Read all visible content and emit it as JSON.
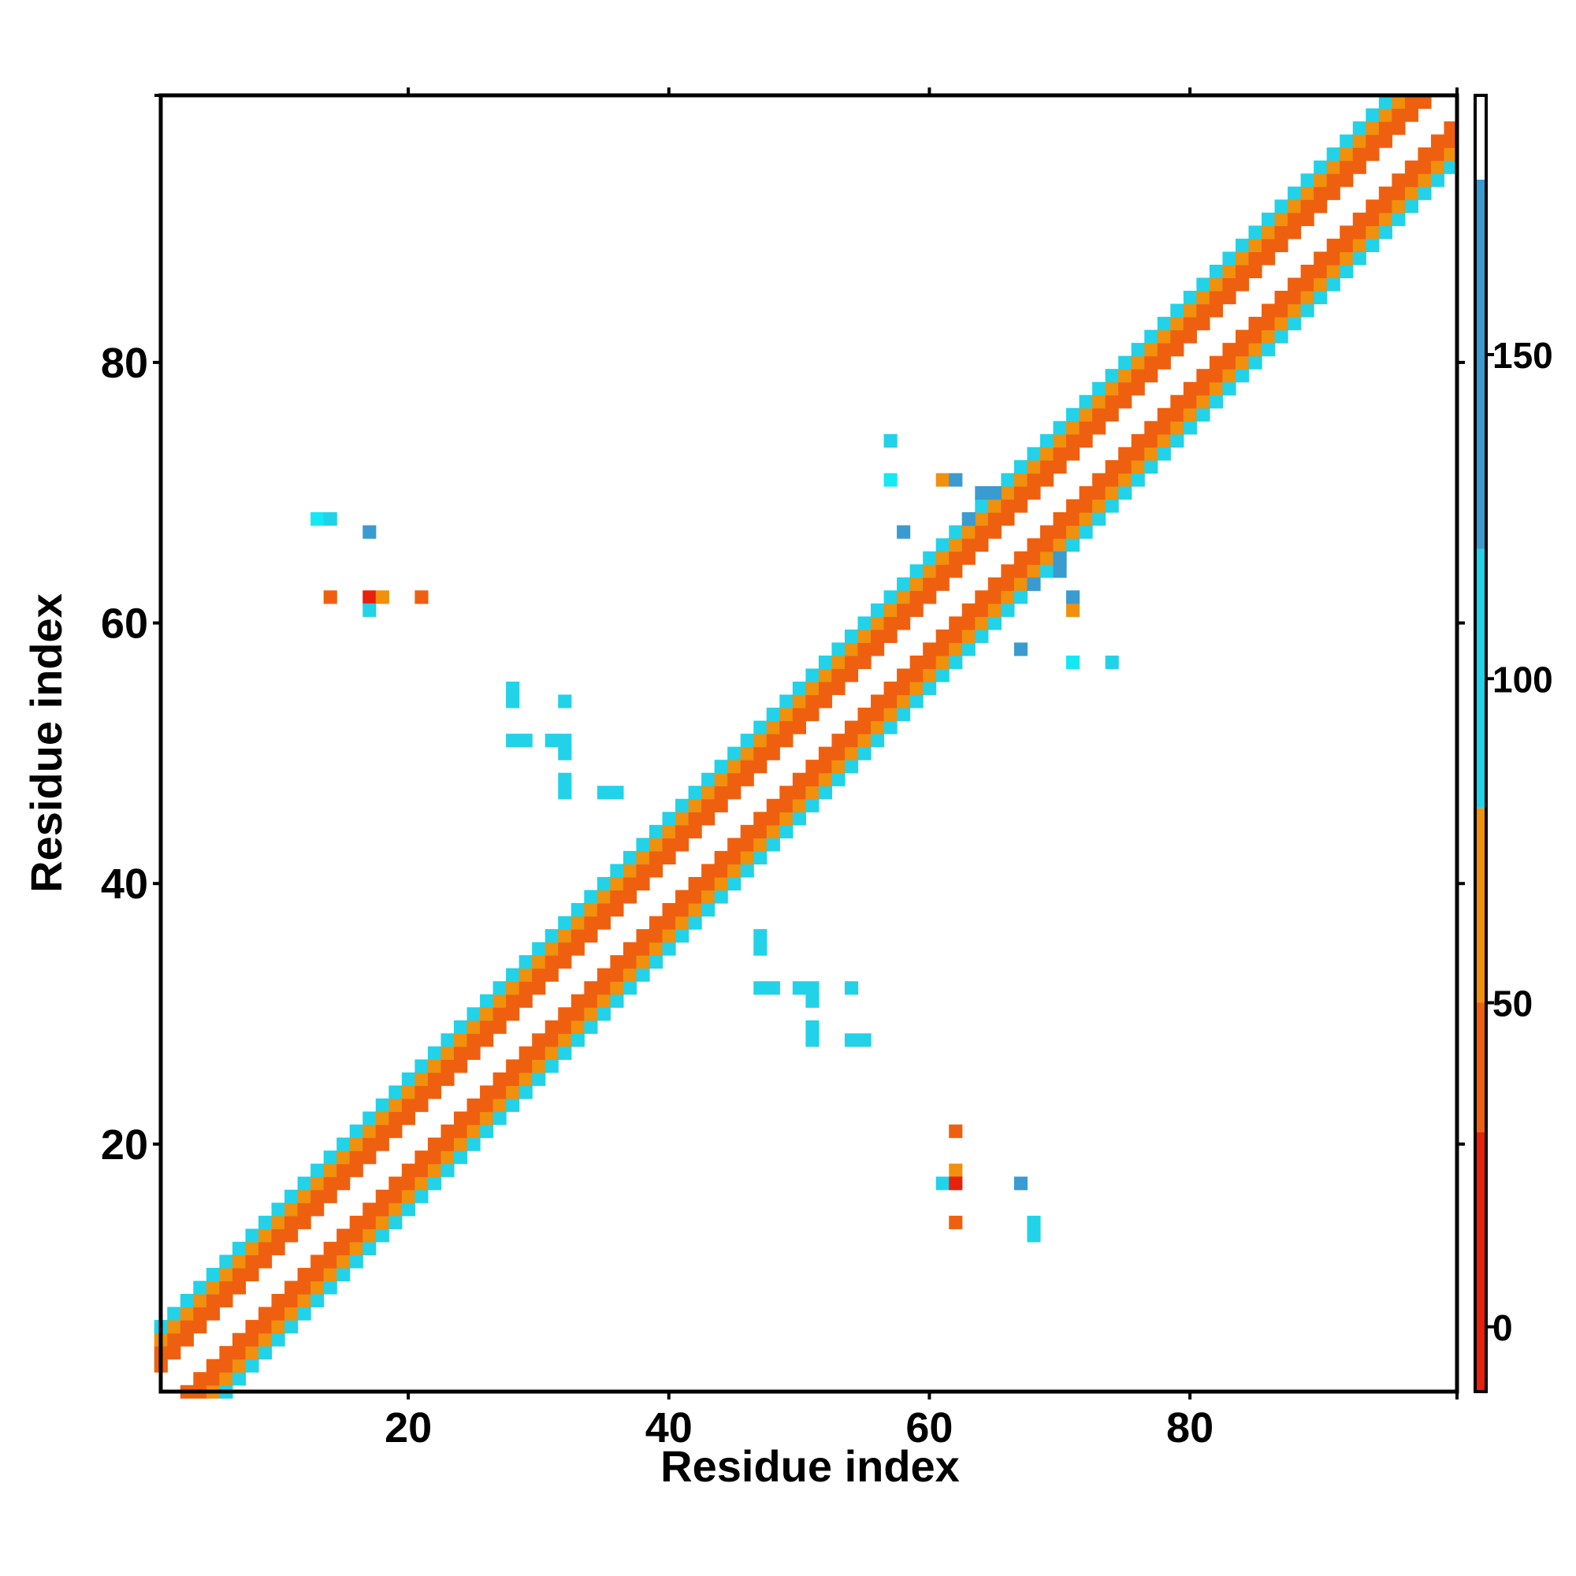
{
  "chart_data": {
    "type": "heatmap",
    "title": "",
    "xlabel": "Residue index",
    "ylabel": "Residue index",
    "xlim": [
      1,
      100
    ],
    "ylim": [
      1,
      100
    ],
    "x_ticks": [
      20,
      40,
      60,
      80
    ],
    "y_ticks": [
      20,
      40,
      60,
      80
    ],
    "grid": false,
    "colorbar": {
      "position": "right",
      "range": [
        -10,
        190
      ],
      "ticks": [
        0,
        50,
        100,
        150
      ],
      "bands": [
        {
          "from": -10,
          "to": 30,
          "color": "#e8200c"
        },
        {
          "from": 30,
          "to": 50,
          "color": "#ee6010"
        },
        {
          "from": 50,
          "to": 80,
          "color": "#f0900c"
        },
        {
          "from": 80,
          "to": 120,
          "color": "#22d2e8"
        },
        {
          "from": 120,
          "to": 177,
          "color": "#3a9bd0"
        },
        {
          "from": 177,
          "to": 190,
          "color": "#ffffff"
        }
      ]
    },
    "colors": {
      "red": "#e8200c",
      "orange_red": "#ee6010",
      "orange": "#f0900c",
      "cyan": "#22d2e8",
      "bright_cyan": "#14e8f4",
      "blue": "#3a9bd0"
    },
    "band_pattern": {
      "description": "Dense contacts along the main diagonal; value class depends on |i-j| offset",
      "offset_values": [
        [
          2,
          35
        ],
        [
          3,
          45
        ],
        [
          4,
          60
        ],
        [
          5,
          100
        ]
      ]
    },
    "off_diagonal_contacts": [
      {
        "x": 13,
        "y": 68,
        "value": 105
      },
      {
        "x": 14,
        "y": 68,
        "value": 100
      },
      {
        "x": 17,
        "y": 67,
        "value": 150
      },
      {
        "x": 14,
        "y": 62,
        "value": 45
      },
      {
        "x": 17,
        "y": 62,
        "value": 20
      },
      {
        "x": 18,
        "y": 62,
        "value": 60
      },
      {
        "x": 21,
        "y": 62,
        "value": 45
      },
      {
        "x": 17,
        "y": 61,
        "value": 100
      },
      {
        "x": 28,
        "y": 55,
        "value": 100
      },
      {
        "x": 28,
        "y": 54,
        "value": 100
      },
      {
        "x": 32,
        "y": 54,
        "value": 100
      },
      {
        "x": 28,
        "y": 51,
        "value": 100
      },
      {
        "x": 29,
        "y": 51,
        "value": 100
      },
      {
        "x": 31,
        "y": 51,
        "value": 100
      },
      {
        "x": 32,
        "y": 51,
        "value": 100
      },
      {
        "x": 32,
        "y": 50,
        "value": 100
      },
      {
        "x": 32,
        "y": 48,
        "value": 100
      },
      {
        "x": 32,
        "y": 47,
        "value": 100
      },
      {
        "x": 35,
        "y": 47,
        "value": 100
      },
      {
        "x": 36,
        "y": 47,
        "value": 100
      },
      {
        "x": 47,
        "y": 36,
        "value": 100
      },
      {
        "x": 47,
        "y": 35,
        "value": 100
      },
      {
        "x": 47,
        "y": 32,
        "value": 100
      },
      {
        "x": 48,
        "y": 32,
        "value": 100
      },
      {
        "x": 50,
        "y": 32,
        "value": 100
      },
      {
        "x": 51,
        "y": 32,
        "value": 100
      },
      {
        "x": 54,
        "y": 32,
        "value": 100
      },
      {
        "x": 51,
        "y": 31,
        "value": 100
      },
      {
        "x": 51,
        "y": 29,
        "value": 100
      },
      {
        "x": 51,
        "y": 28,
        "value": 100
      },
      {
        "x": 54,
        "y": 28,
        "value": 100
      },
      {
        "x": 55,
        "y": 28,
        "value": 100
      },
      {
        "x": 57,
        "y": 74,
        "value": 100
      },
      {
        "x": 57,
        "y": 71,
        "value": 105
      },
      {
        "x": 58,
        "y": 67,
        "value": 140
      },
      {
        "x": 62,
        "y": 21,
        "value": 45
      },
      {
        "x": 62,
        "y": 18,
        "value": 60
      },
      {
        "x": 61,
        "y": 17,
        "value": 100
      },
      {
        "x": 62,
        "y": 17,
        "value": 20
      },
      {
        "x": 67,
        "y": 17,
        "value": 150
      },
      {
        "x": 62,
        "y": 14,
        "value": 45
      },
      {
        "x": 68,
        "y": 14,
        "value": 100
      },
      {
        "x": 68,
        "y": 13,
        "value": 100
      },
      {
        "x": 67,
        "y": 58,
        "value": 140
      },
      {
        "x": 71,
        "y": 57,
        "value": 105
      },
      {
        "x": 74,
        "y": 57,
        "value": 100
      },
      {
        "x": 61,
        "y": 71,
        "value": 60
      },
      {
        "x": 62,
        "y": 71,
        "value": 140
      },
      {
        "x": 64,
        "y": 70,
        "value": 140
      },
      {
        "x": 65,
        "y": 70,
        "value": 140
      },
      {
        "x": 71,
        "y": 61,
        "value": 60
      },
      {
        "x": 71,
        "y": 62,
        "value": 140
      },
      {
        "x": 70,
        "y": 64,
        "value": 140
      },
      {
        "x": 70,
        "y": 65,
        "value": 140
      },
      {
        "x": 63,
        "y": 68,
        "value": 140
      },
      {
        "x": 68,
        "y": 63,
        "value": 140
      }
    ]
  }
}
